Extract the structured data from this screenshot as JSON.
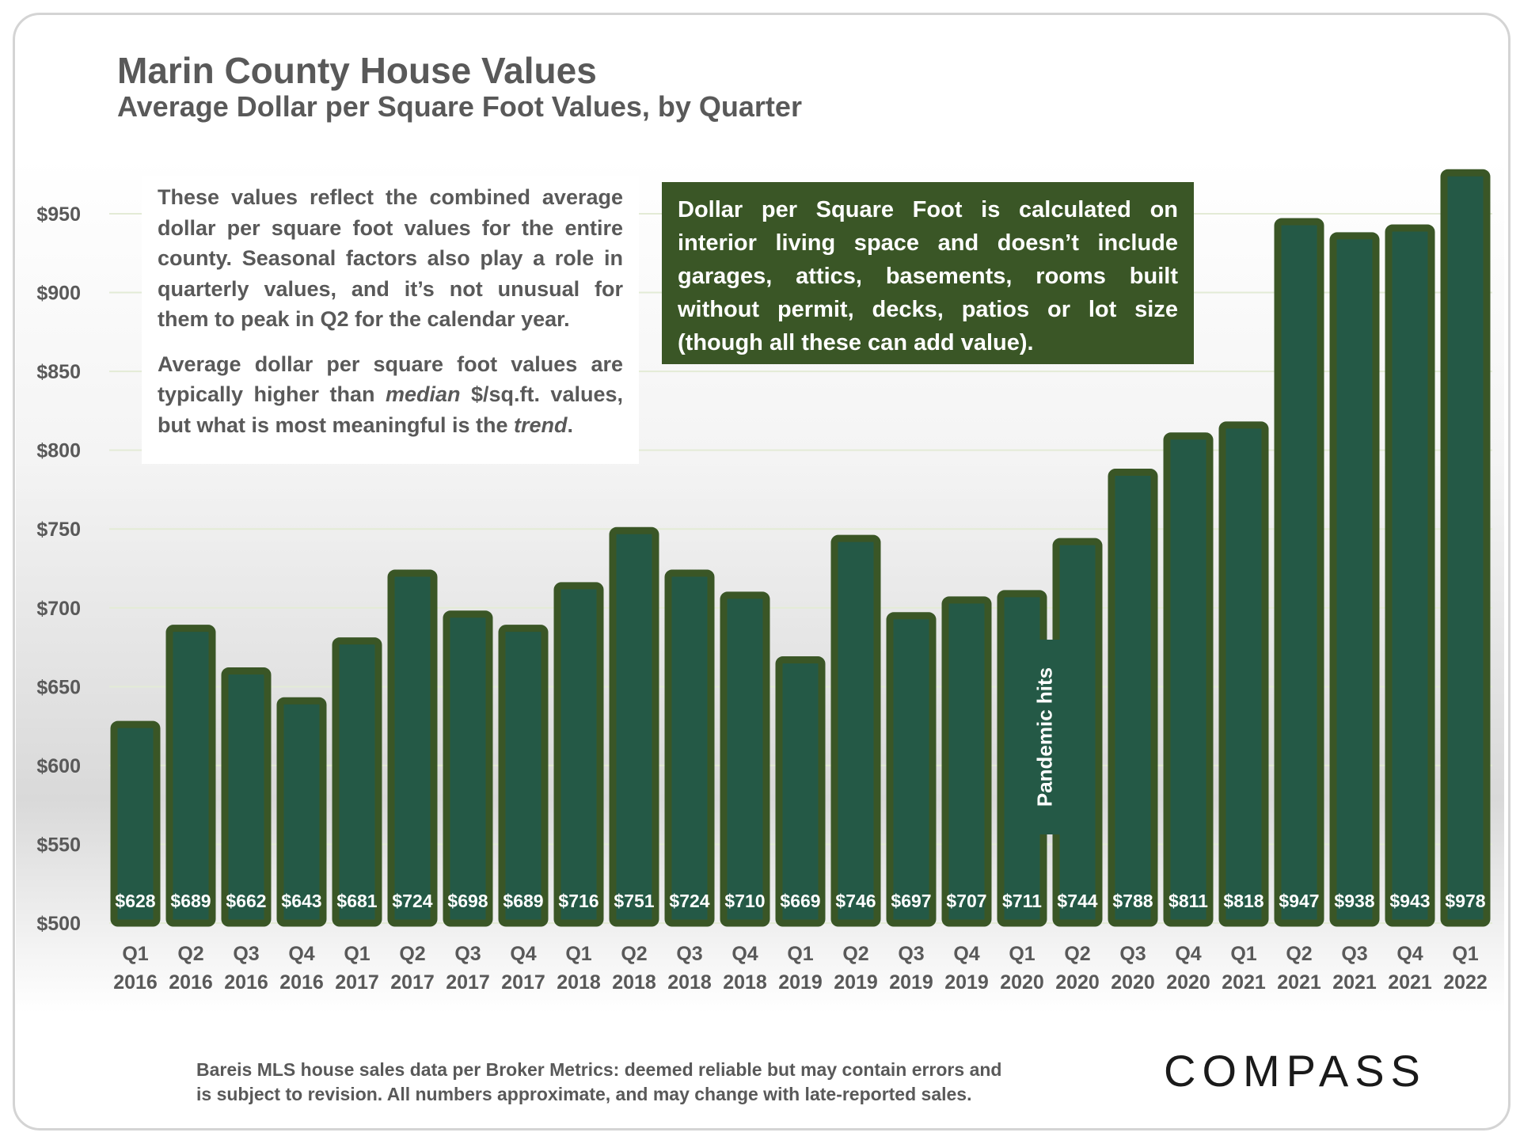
{
  "title": "Marin County House Values",
  "subtitle": "Average Dollar per Square Foot Values, by Quarter",
  "notes": {
    "left_paragraph_1": "These values reflect the combined average dollar per square foot values for the entire county. Seasonal factors also play a role in quarterly values, and it’s not unusual for them to peak in Q2 for the calendar year.",
    "left_p2_part1": "Average dollar per square foot values are typically higher than ",
    "left_p2_em1": "median",
    "left_p2_part2": " $/sq.ft. values, but what is most meaningful is the ",
    "left_p2_em2": "trend",
    "left_p2_part3": ".",
    "right_box": "Dollar per Square Foot is calculated on interior living space and doesn’t include garages, attics, basements, rooms built without permit, decks, patios or lot size (though all these can add value)."
  },
  "annotation": "Pandemic hits",
  "footer": {
    "line1": "Bareis MLS house sales data per Broker Metrics:  deemed reliable but may contain errors and",
    "line2": "is subject to revision. All numbers approximate, and may change with late-reported sales."
  },
  "logo": "COMPASS",
  "colors": {
    "bar_fill": "#245946",
    "bar_border": "#3a5626",
    "text": "#595959",
    "grid": "#e3ebd6"
  },
  "chart_data": {
    "type": "bar",
    "title": "Marin County House Values",
    "subtitle": "Average Dollar per Square Foot Values, by Quarter",
    "xlabel": "",
    "ylabel": "",
    "ylim": [
      500,
      980
    ],
    "yticks": [
      500,
      550,
      600,
      650,
      700,
      750,
      800,
      850,
      900,
      950
    ],
    "ytick_labels": [
      "$500",
      "$550",
      "$600",
      "$650",
      "$700",
      "$750",
      "$800",
      "$850",
      "$900",
      "$950"
    ],
    "grid": true,
    "categories": [
      {
        "q": "Q1",
        "year": "2016"
      },
      {
        "q": "Q2",
        "year": "2016"
      },
      {
        "q": "Q3",
        "year": "2016"
      },
      {
        "q": "Q4",
        "year": "2016"
      },
      {
        "q": "Q1",
        "year": "2017"
      },
      {
        "q": "Q2",
        "year": "2017"
      },
      {
        "q": "Q3",
        "year": "2017"
      },
      {
        "q": "Q4",
        "year": "2017"
      },
      {
        "q": "Q1",
        "year": "2018"
      },
      {
        "q": "Q2",
        "year": "2018"
      },
      {
        "q": "Q3",
        "year": "2018"
      },
      {
        "q": "Q4",
        "year": "2018"
      },
      {
        "q": "Q1",
        "year": "2019"
      },
      {
        "q": "Q2",
        "year": "2019"
      },
      {
        "q": "Q3",
        "year": "2019"
      },
      {
        "q": "Q4",
        "year": "2019"
      },
      {
        "q": "Q1",
        "year": "2020"
      },
      {
        "q": "Q2",
        "year": "2020"
      },
      {
        "q": "Q3",
        "year": "2020"
      },
      {
        "q": "Q4",
        "year": "2020"
      },
      {
        "q": "Q1",
        "year": "2021"
      },
      {
        "q": "Q2",
        "year": "2021"
      },
      {
        "q": "Q3",
        "year": "2021"
      },
      {
        "q": "Q4",
        "year": "2021"
      },
      {
        "q": "Q1",
        "year": "2022"
      }
    ],
    "values": [
      628,
      689,
      662,
      643,
      681,
      724,
      698,
      689,
      716,
      751,
      724,
      710,
      669,
      746,
      697,
      707,
      711,
      744,
      788,
      811,
      818,
      947,
      938,
      943,
      978
    ],
    "value_labels": [
      "$628",
      "$689",
      "$662",
      "$643",
      "$681",
      "$724",
      "$698",
      "$689",
      "$716",
      "$751",
      "$724",
      "$710",
      "$669",
      "$746",
      "$697",
      "$707",
      "$711",
      "$744",
      "$788",
      "$811",
      "$818",
      "$947",
      "$938",
      "$943",
      "$978"
    ]
  }
}
